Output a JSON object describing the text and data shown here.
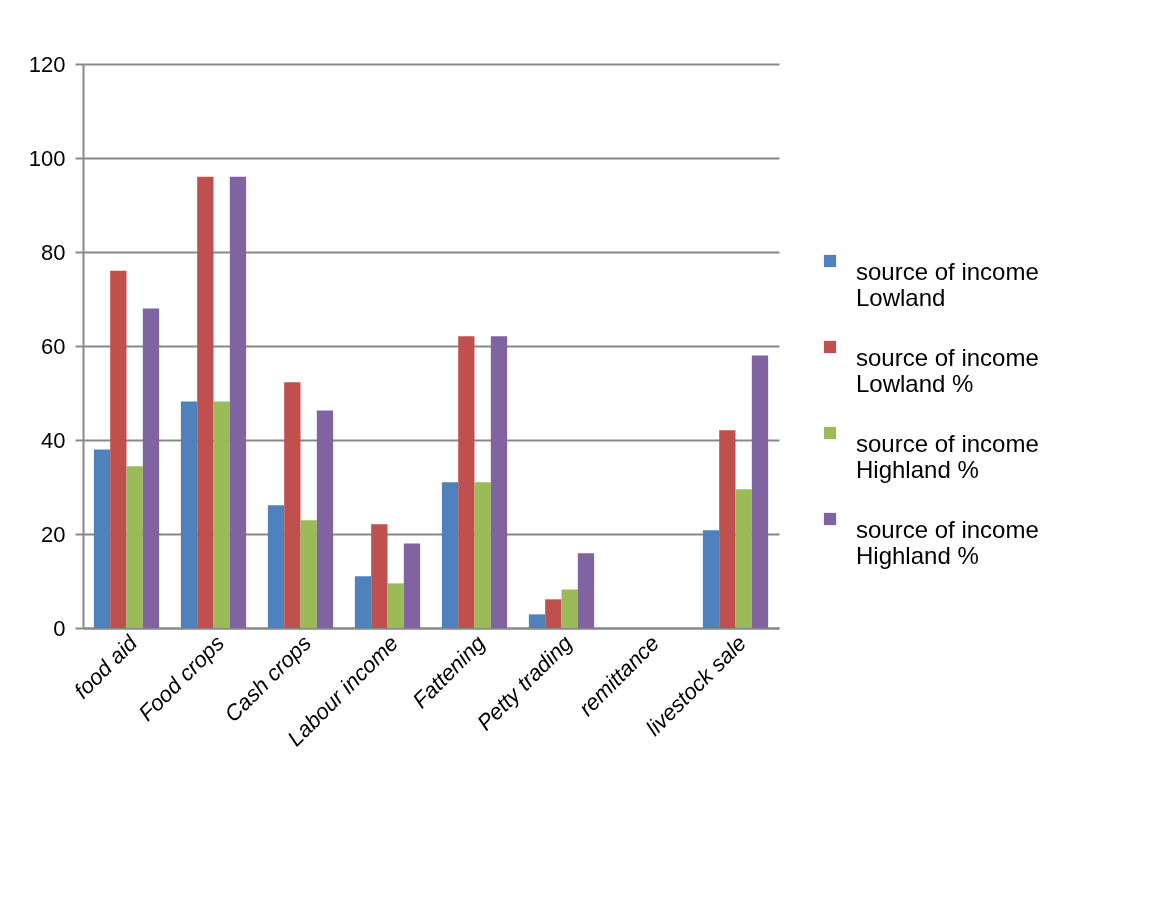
{
  "chart_data": {
    "type": "bar",
    "categories": [
      "food aid",
      "Food crops",
      "Cash crops",
      "Labour income",
      "Fattening",
      "Petty trading",
      "remittance",
      "livestock sale"
    ],
    "series": [
      {
        "name": "source of  income Lowland",
        "color": "#4f81bd",
        "values": [
          38,
          48.2,
          26.1,
          11,
          31,
          2.9,
          0,
          20.8
        ]
      },
      {
        "name": "source of  income Lowland %",
        "color": "#c0504d",
        "values": [
          76,
          96,
          52.3,
          22.1,
          62.1,
          6.1,
          0,
          42.1
        ]
      },
      {
        "name": "source of  income Highland %",
        "color": "#9bbb59",
        "values": [
          34.4,
          48.2,
          22.9,
          9.5,
          31,
          8.2,
          0,
          29.5
        ]
      },
      {
        "name": "source of  income Highland %",
        "color": "#8064a2",
        "values": [
          68,
          96,
          46.3,
          18,
          62.1,
          15.9,
          0,
          58
        ]
      }
    ],
    "ylim": [
      0,
      120
    ],
    "yticks": [
      0,
      20,
      40,
      60,
      80,
      100,
      120
    ],
    "grid": "y",
    "legend": "right"
  }
}
